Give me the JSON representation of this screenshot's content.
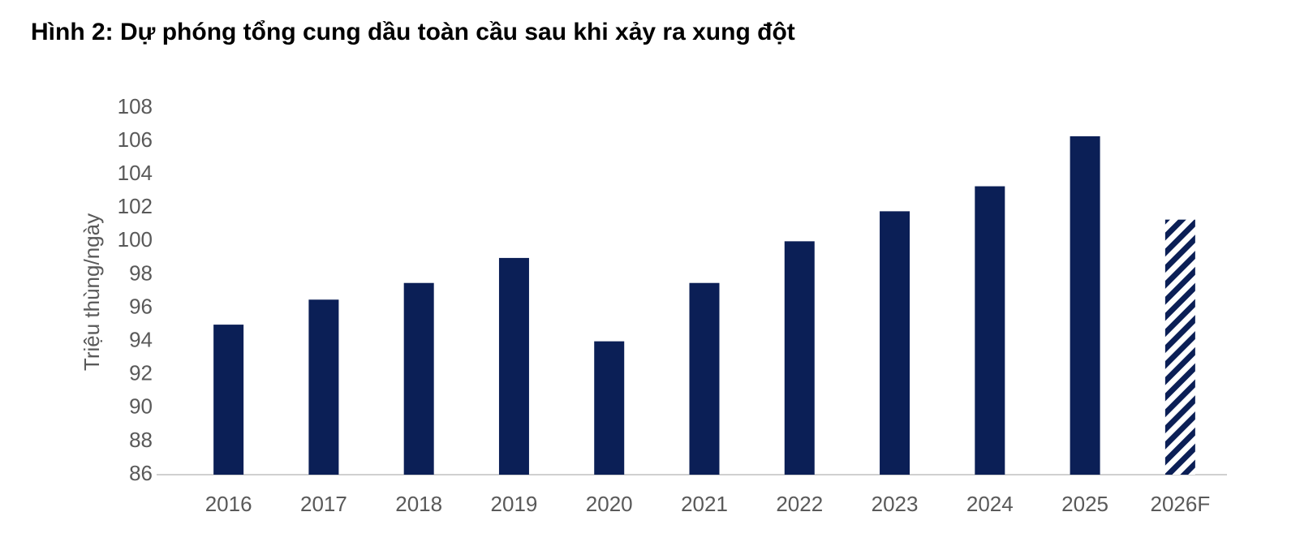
{
  "chart_data": {
    "type": "bar",
    "title": "Hình 2: Dự phóng tổng cung dầu toàn cầu sau khi xảy ra xung đột",
    "y_label": "Triệu thùng/ngày",
    "categories": [
      "2016",
      "2017",
      "2018",
      "2019",
      "2020",
      "2021",
      "2022",
      "2023",
      "2024",
      "2025",
      "2026F"
    ],
    "values": [
      95,
      96.5,
      97.5,
      99,
      94,
      97.5,
      100,
      101.8,
      103.3,
      106.3,
      101.3
    ],
    "hatched": [
      false,
      false,
      false,
      false,
      false,
      false,
      false,
      false,
      false,
      false,
      true
    ],
    "color": "#0b1f56",
    "ylim": [
      86,
      108
    ],
    "yticks": [
      86,
      88,
      90,
      92,
      94,
      96,
      98,
      100,
      102,
      104,
      106,
      108
    ],
    "grid": false
  }
}
